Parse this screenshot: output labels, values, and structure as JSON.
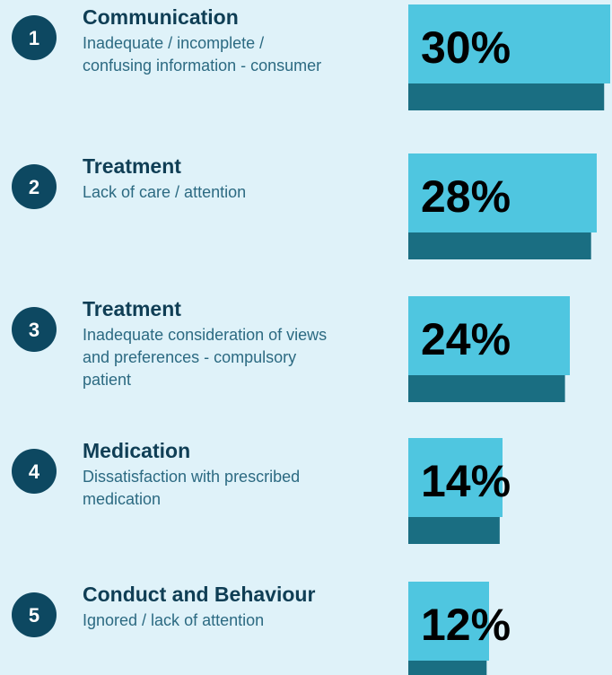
{
  "items": [
    {
      "number": "1",
      "category": "Communication",
      "description": [
        "Inadequate / incomplete /",
        "confusing information - consumer"
      ],
      "value": 30,
      "value_label": "30%"
    },
    {
      "number": "2",
      "category": "Treatment",
      "description": [
        "Lack of care / attention"
      ],
      "value": 28,
      "value_label": "28%"
    },
    {
      "number": "3",
      "category": "Treatment",
      "description": [
        "Inadequate consideration of views",
        "and preferences - compulsory",
        "patient"
      ],
      "value": 24,
      "value_label": "24%"
    },
    {
      "number": "4",
      "category": "Medication",
      "description": [
        "Dissatisfaction with prescribed",
        "medication"
      ],
      "value": 14,
      "value_label": "14%"
    },
    {
      "number": "5",
      "category": "Conduct and Behaviour",
      "description": [
        "Ignored / lack of attention"
      ],
      "value": 12,
      "value_label": "12%"
    }
  ]
}
